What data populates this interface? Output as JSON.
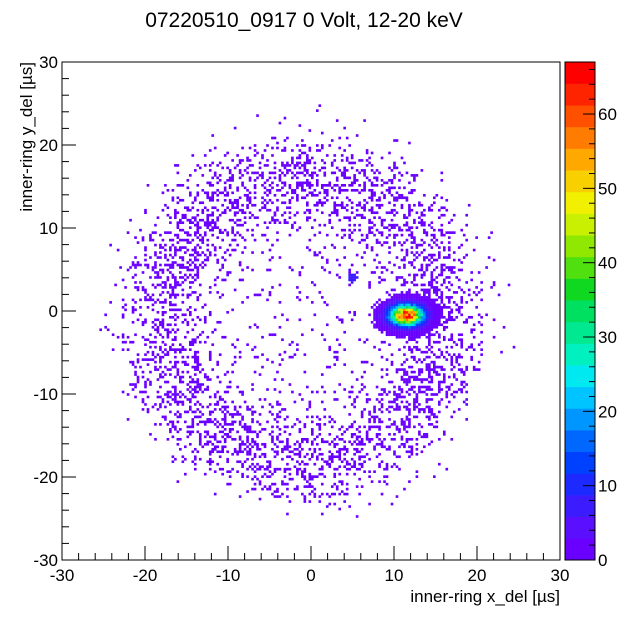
{
  "chart_data": {
    "type": "heatmap",
    "title": "07220510_0917 0 Volt, 12-20 keV",
    "xlabel": "inner-ring x_del [µs]",
    "ylabel": "inner-ring y_del [µs]",
    "xlim": [
      -30,
      30
    ],
    "ylim": [
      -30,
      30
    ],
    "x_ticks": [
      -30,
      -20,
      -10,
      0,
      10,
      20,
      30
    ],
    "y_ticks": [
      -30,
      -20,
      -10,
      0,
      10,
      20,
      30
    ],
    "colorbar": {
      "zlim": [
        0,
        67
      ],
      "ticks": [
        0,
        10,
        20,
        30,
        40,
        50,
        60
      ],
      "palette": [
        "#6a00ff",
        "#5a10ff",
        "#3c1cff",
        "#1c2aff",
        "#0040ff",
        "#0068ff",
        "#0096ff",
        "#00c4ff",
        "#00e8f0",
        "#00f0c0",
        "#00e890",
        "#00e060",
        "#10d820",
        "#50e010",
        "#90e800",
        "#c8f000",
        "#f0f000",
        "#f8d000",
        "#ffa800",
        "#ff7c00",
        "#ff5000",
        "#ff2400",
        "#ff0000"
      ]
    },
    "distribution": {
      "ring": {
        "center": [
          -1,
          -1
        ],
        "inner_radius": 13,
        "outer_radius": 20,
        "count_per_bin": 1
      },
      "peak": {
        "center": [
          11.5,
          -0.5
        ],
        "max_count": 67
      },
      "spot": {
        "center": [
          5,
          4
        ],
        "count": 8
      }
    },
    "grid": false,
    "legend": "colorbar-right"
  }
}
